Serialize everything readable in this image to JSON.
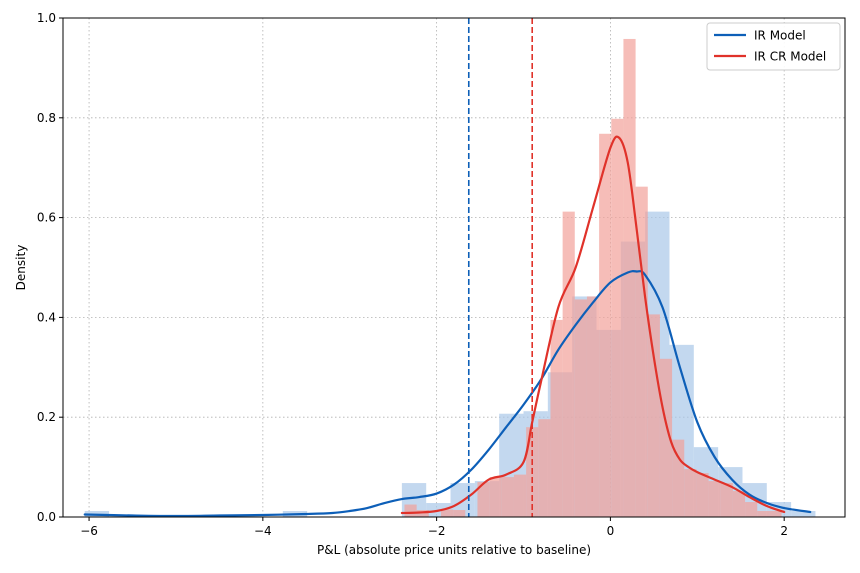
{
  "chart_data": {
    "type": "histogram",
    "title": "",
    "xlabel": "P&L (absolute price units relative to baseline)",
    "ylabel": "Density",
    "xlim": [
      -6.3,
      2.7
    ],
    "ylim": [
      0,
      1.0
    ],
    "x_ticks": [
      -6,
      -4,
      -2,
      0,
      2
    ],
    "x_tick_labels": [
      "−6",
      "−4",
      "−2",
      "0",
      "2"
    ],
    "y_ticks": [
      0.0,
      0.2,
      0.4,
      0.6,
      0.8,
      1.0
    ],
    "y_tick_labels": [
      "0.0",
      "0.2",
      "0.4",
      "0.6",
      "0.8",
      "1.0"
    ],
    "grid": true,
    "legend_position": "top-right",
    "series": [
      {
        "name": "IR Model",
        "color": "#0d5fb8",
        "hist_color": "#a9c8e8",
        "bin_width": 0.28,
        "hist_bins": [
          {
            "x0": -6.05,
            "density": 0.012
          },
          {
            "x0": -3.77,
            "density": 0.012
          },
          {
            "x0": -2.4,
            "density": 0.068
          },
          {
            "x0": -2.12,
            "density": 0.028
          },
          {
            "x0": -1.84,
            "density": 0.068
          },
          {
            "x0": -1.56,
            "density": 0.072
          },
          {
            "x0": -1.28,
            "density": 0.207
          },
          {
            "x0": -1.0,
            "density": 0.212
          },
          {
            "x0": -0.72,
            "density": 0.29
          },
          {
            "x0": -0.44,
            "density": 0.442
          },
          {
            "x0": -0.16,
            "density": 0.375
          },
          {
            "x0": 0.12,
            "density": 0.552
          },
          {
            "x0": 0.4,
            "density": 0.612
          },
          {
            "x0": 0.68,
            "density": 0.345
          },
          {
            "x0": 0.96,
            "density": 0.14
          },
          {
            "x0": 1.24,
            "density": 0.1
          },
          {
            "x0": 1.52,
            "density": 0.068
          },
          {
            "x0": 1.8,
            "density": 0.03
          },
          {
            "x0": 2.08,
            "density": 0.012
          }
        ],
        "kde_x": [
          -6.05,
          -5.5,
          -5.0,
          -4.5,
          -4.0,
          -3.5,
          -3.2,
          -3.0,
          -2.8,
          -2.6,
          -2.4,
          -2.2,
          -2.0,
          -1.8,
          -1.6,
          -1.4,
          -1.2,
          -1.0,
          -0.8,
          -0.6,
          -0.4,
          -0.2,
          0.0,
          0.2,
          0.3,
          0.4,
          0.6,
          0.8,
          1.0,
          1.2,
          1.4,
          1.6,
          1.8,
          2.0,
          2.3
        ],
        "kde_y": [
          0.005,
          0.003,
          0.002,
          0.003,
          0.004,
          0.006,
          0.008,
          0.012,
          0.018,
          0.028,
          0.036,
          0.04,
          0.047,
          0.065,
          0.095,
          0.135,
          0.18,
          0.225,
          0.275,
          0.335,
          0.385,
          0.43,
          0.47,
          0.49,
          0.492,
          0.485,
          0.42,
          0.3,
          0.19,
          0.12,
          0.075,
          0.045,
          0.028,
          0.018,
          0.01
        ],
        "vline_x": -1.63
      },
      {
        "name": "IR CR Model",
        "color": "#e0322a",
        "hist_color": "#f2a19a",
        "bin_width": 0.14,
        "hist_bins": [
          {
            "x0": -2.37,
            "density": 0.025
          },
          {
            "x0": -2.23,
            "density": 0.014
          },
          {
            "x0": -1.95,
            "density": 0.015
          },
          {
            "x0": -1.81,
            "density": 0.014
          },
          {
            "x0": -1.53,
            "density": 0.07
          },
          {
            "x0": -1.39,
            "density": 0.08
          },
          {
            "x0": -1.25,
            "density": 0.08
          },
          {
            "x0": -1.11,
            "density": 0.085
          },
          {
            "x0": -0.97,
            "density": 0.18
          },
          {
            "x0": -0.83,
            "density": 0.196
          },
          {
            "x0": -0.69,
            "density": 0.395
          },
          {
            "x0": -0.55,
            "density": 0.612
          },
          {
            "x0": -0.41,
            "density": 0.436
          },
          {
            "x0": -0.27,
            "density": 0.442
          },
          {
            "x0": -0.13,
            "density": 0.768
          },
          {
            "x0": 0.01,
            "density": 0.798
          },
          {
            "x0": 0.15,
            "density": 0.958
          },
          {
            "x0": 0.29,
            "density": 0.662
          },
          {
            "x0": 0.43,
            "density": 0.406
          },
          {
            "x0": 0.57,
            "density": 0.317
          },
          {
            "x0": 0.71,
            "density": 0.155
          },
          {
            "x0": 0.85,
            "density": 0.096
          },
          {
            "x0": 0.99,
            "density": 0.088
          },
          {
            "x0": 1.13,
            "density": 0.072
          },
          {
            "x0": 1.27,
            "density": 0.068
          },
          {
            "x0": 1.41,
            "density": 0.052
          },
          {
            "x0": 1.55,
            "density": 0.03
          },
          {
            "x0": 1.69,
            "density": 0.012
          },
          {
            "x0": 1.83,
            "density": 0.012
          }
        ],
        "kde_x": [
          -2.4,
          -2.2,
          -2.0,
          -1.8,
          -1.6,
          -1.4,
          -1.2,
          -1.0,
          -0.9,
          -0.8,
          -0.6,
          -0.4,
          -0.2,
          0.0,
          0.1,
          0.2,
          0.3,
          0.4,
          0.5,
          0.6,
          0.7,
          0.8,
          0.9,
          1.0,
          1.2,
          1.4,
          1.6,
          1.8,
          2.0
        ],
        "kde_y": [
          0.008,
          0.009,
          0.012,
          0.022,
          0.045,
          0.075,
          0.085,
          0.11,
          0.19,
          0.27,
          0.42,
          0.5,
          0.62,
          0.74,
          0.76,
          0.71,
          0.58,
          0.44,
          0.32,
          0.22,
          0.15,
          0.115,
          0.1,
          0.09,
          0.075,
          0.06,
          0.04,
          0.022,
          0.01
        ],
        "vline_x": -0.9
      }
    ]
  }
}
